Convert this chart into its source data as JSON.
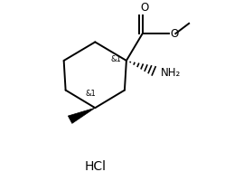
{
  "bg_color": "#ffffff",
  "line_color": "#000000",
  "line_width": 1.4,
  "font_size_small": 6,
  "font_size_label": 7.5,
  "font_size_hcl": 10,
  "figsize": [
    2.59,
    2.11
  ],
  "dpi": 100,
  "hcl_text": "HCl",
  "c1_label": "&1",
  "c4_label": "&1",
  "o_label": "O",
  "nh2_label": "NH₂",
  "o_ester_label": "O"
}
